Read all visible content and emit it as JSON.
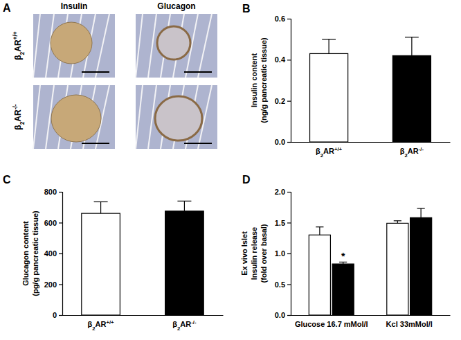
{
  "image_panel": {
    "title": "A",
    "columns": [
      "Insulin",
      "Glucagon"
    ],
    "rows": [
      "β2AR+/+",
      "β2AR-/-"
    ]
  },
  "chart_data": [
    {
      "type": "bar",
      "title": "B",
      "categories": [
        "β2AR+/+",
        "β2AR-/-"
      ],
      "values": [
        0.43,
        0.42
      ],
      "errors": [
        0.07,
        0.09
      ],
      "colors": [
        "#ffffff",
        "#000000"
      ],
      "ylabel": [
        "Insulin content",
        "(ng/g pancreatic tissue)"
      ],
      "ylim": [
        0,
        0.6
      ],
      "yticks": [
        {
          "value": 0,
          "label": "0.0"
        },
        {
          "value": 0.2,
          "label": "0.2"
        },
        {
          "value": 0.4,
          "label": "0.4"
        },
        {
          "value": 0.6,
          "label": "0.6"
        }
      ]
    },
    {
      "type": "bar",
      "title": "C",
      "categories": [
        "β2AR+/+",
        "β2AR-/-"
      ],
      "values": [
        660,
        675
      ],
      "errors": [
        75,
        65
      ],
      "colors": [
        "#ffffff",
        "#000000"
      ],
      "ylabel": [
        "Glucagon content",
        "(pg/g pancreatic tissue)"
      ],
      "ylim": [
        0,
        800
      ],
      "yticks": [
        0,
        200,
        400,
        600,
        800
      ]
    },
    {
      "type": "bar",
      "title": "D",
      "categories": [
        "Glucose 16.7 mMol/l",
        "Kcl 33mMol/l"
      ],
      "series": [
        {
          "color": "#ffffff",
          "values": [
            1.3,
            1.49
          ],
          "errors": [
            0.13,
            0.04
          ]
        },
        {
          "color": "#000000",
          "values": [
            0.83,
            1.58
          ],
          "errors": [
            0.03,
            0.15
          ],
          "annotations": [
            "*",
            null
          ]
        }
      ],
      "ylabel": [
        "Ex vivo Islet",
        "Insulin release",
        "(fold over basal)"
      ],
      "ylim": [
        0,
        2.0
      ],
      "yticks": [
        {
          "value": 0,
          "label": "0.0"
        },
        {
          "value": 0.5,
          "label": "0.5"
        },
        {
          "value": 1.0,
          "label": "1.0"
        },
        {
          "value": 1.5,
          "label": "1.5"
        },
        {
          "value": 2.0,
          "label": "2.0"
        }
      ]
    }
  ]
}
